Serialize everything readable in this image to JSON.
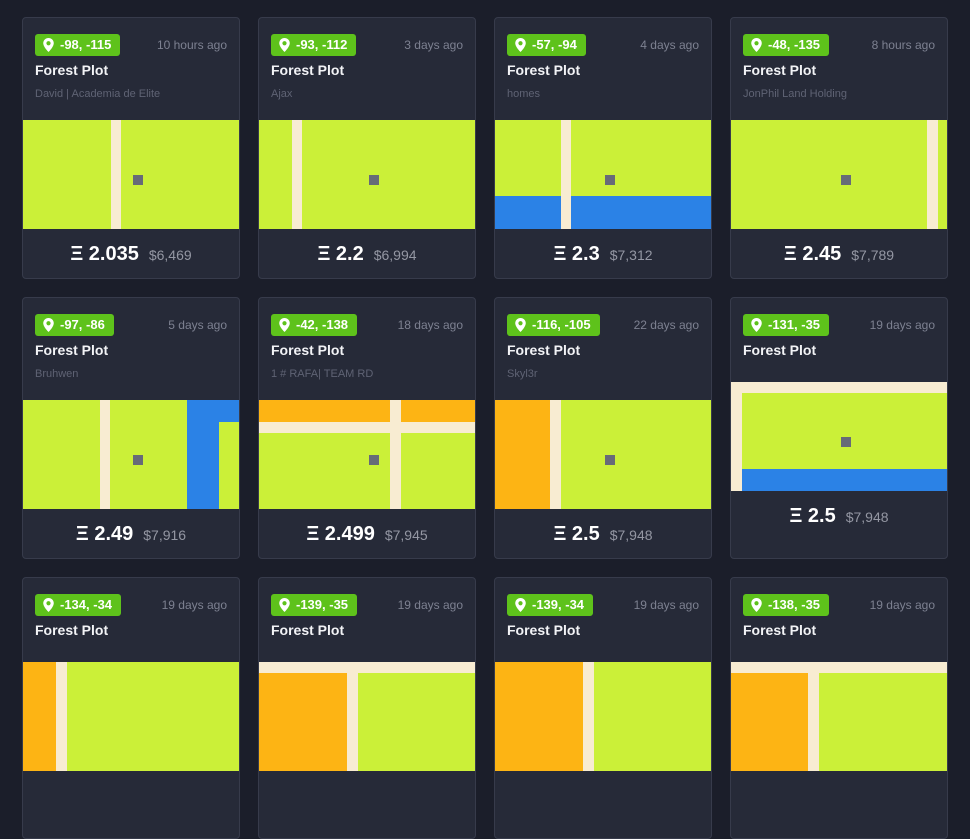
{
  "listings": [
    {
      "coords": "-98, -115",
      "time": "10 hours ago",
      "title": "Forest Plot",
      "owner": "David | Academia de Elite",
      "price_eth": "Ξ 2.035",
      "price_usd": "$6,469"
    },
    {
      "coords": "-93, -112",
      "time": "3 days ago",
      "title": "Forest Plot",
      "owner": "Ajax",
      "price_eth": "Ξ 2.2",
      "price_usd": "$6,994"
    },
    {
      "coords": "-57, -94",
      "time": "4 days ago",
      "title": "Forest Plot",
      "owner": "homes",
      "price_eth": "Ξ 2.3",
      "price_usd": "$7,312"
    },
    {
      "coords": "-48, -135",
      "time": "8 hours ago",
      "title": "Forest Plot",
      "owner": "JonPhil Land Holding",
      "price_eth": "Ξ 2.45",
      "price_usd": "$7,789"
    },
    {
      "coords": "-97, -86",
      "time": "5 days ago",
      "title": "Forest Plot",
      "owner": "Bruhwen",
      "price_eth": "Ξ 2.49",
      "price_usd": "$7,916"
    },
    {
      "coords": "-42, -138",
      "time": "18 days ago",
      "title": "Forest Plot",
      "owner": "1 # RAFA| TEAM RD",
      "price_eth": "Ξ 2.499",
      "price_usd": "$7,945"
    },
    {
      "coords": "-116, -105",
      "time": "22 days ago",
      "title": "Forest Plot",
      "owner": "Skyl3r",
      "price_eth": "Ξ 2.5",
      "price_usd": "$7,948"
    },
    {
      "coords": "-131, -35",
      "time": "19 days ago",
      "title": "Forest Plot",
      "owner": "",
      "price_eth": "Ξ 2.5",
      "price_usd": "$7,948"
    },
    {
      "coords": "-134, -34",
      "time": "19 days ago",
      "title": "Forest Plot",
      "owner": "",
      "price_eth": "",
      "price_usd": ""
    },
    {
      "coords": "-139, -35",
      "time": "19 days ago",
      "title": "Forest Plot",
      "owner": "",
      "price_eth": "",
      "price_usd": ""
    },
    {
      "coords": "-139, -34",
      "time": "19 days ago",
      "title": "Forest Plot",
      "owner": "",
      "price_eth": "",
      "price_usd": ""
    },
    {
      "coords": "-138, -35",
      "time": "19 days ago",
      "title": "Forest Plot",
      "owner": "",
      "price_eth": "",
      "price_usd": ""
    }
  ],
  "icons": {
    "badge": "map-pin-icon",
    "plot": "plot-marker-icon"
  },
  "colors": {
    "background": "#1b1e2a",
    "card": "#262a38",
    "badge": "#5ec21b",
    "forest": "#cbf038",
    "road": "#f8ecd2",
    "water": "#2b82e6",
    "district": "#fdb414",
    "marker": "#676a78"
  }
}
